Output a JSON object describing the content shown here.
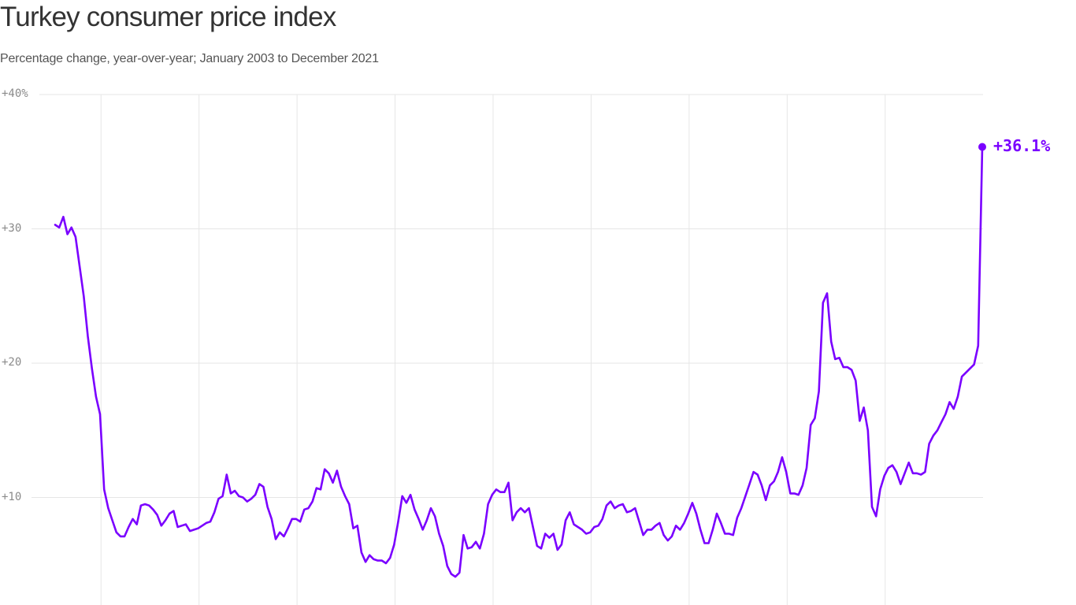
{
  "header": {
    "title": "Turkey consumer price index",
    "subtitle": "Percentage change, year-over-year; January 2003 to December 2021"
  },
  "colors": {
    "line": "#7a00ff",
    "grid": "#e6e6e6",
    "axis_text": "#8a8a8a",
    "title": "#333333"
  },
  "y_axis": {
    "ticks": [
      {
        "value": 40,
        "label": "+40%"
      },
      {
        "value": 30,
        "label": "+30"
      },
      {
        "value": 20,
        "label": "+20"
      },
      {
        "value": 10,
        "label": "+10"
      }
    ]
  },
  "annotation": {
    "end_label": "+36.1%"
  },
  "chart_data": {
    "type": "line",
    "title": "Turkey consumer price index",
    "subtitle": "Percentage change, year-over-year; January 2003 to December 2021",
    "xlabel": "",
    "ylabel": "",
    "x_start": "2003-01",
    "x_end": "2021-12",
    "frequency": "monthly",
    "ylim": [
      0,
      40
    ],
    "y_ticks": [
      "+10",
      "+20",
      "+30",
      "+40%"
    ],
    "grid": {
      "horizontal": true,
      "vertical": true,
      "vertical_every_years": 2,
      "vertical_first": "2004-01"
    },
    "legend": null,
    "annotations": [
      {
        "x": "2021-12",
        "y": 36.1,
        "text": "+36.1%"
      }
    ],
    "series": [
      {
        "name": "CPI y/y %",
        "values": [
          30.3,
          30.1,
          30.9,
          29.6,
          30.1,
          29.4,
          27.2,
          25.0,
          22.0,
          19.6,
          17.5,
          16.2,
          10.6,
          9.2,
          8.3,
          7.4,
          7.1,
          7.1,
          7.8,
          8.4,
          8.0,
          9.4,
          9.5,
          9.4,
          9.1,
          8.7,
          7.9,
          8.3,
          8.8,
          9.0,
          7.8,
          7.9,
          8.0,
          7.5,
          7.6,
          7.7,
          7.9,
          8.1,
          8.2,
          8.9,
          9.9,
          10.1,
          11.7,
          10.3,
          10.5,
          10.1,
          10.0,
          9.7,
          9.9,
          10.2,
          11.0,
          10.8,
          9.3,
          8.4,
          6.9,
          7.4,
          7.1,
          7.7,
          8.4,
          8.4,
          8.2,
          9.1,
          9.2,
          9.7,
          10.7,
          10.6,
          12.1,
          11.8,
          11.1,
          12.0,
          10.8,
          10.1,
          9.5,
          7.7,
          7.9,
          5.9,
          5.2,
          5.7,
          5.4,
          5.3,
          5.3,
          5.1,
          5.5,
          6.5,
          8.2,
          10.1,
          9.6,
          10.2,
          9.1,
          8.4,
          7.6,
          8.3,
          9.2,
          8.6,
          7.3,
          6.4,
          4.9,
          4.3,
          4.1,
          4.4,
          7.2,
          6.2,
          6.3,
          6.7,
          6.2,
          7.3,
          9.5,
          10.2,
          10.6,
          10.4,
          10.4,
          11.1,
          8.3,
          8.9,
          9.2,
          8.9,
          9.2,
          7.8,
          6.4,
          6.2,
          7.3,
          7.0,
          7.3,
          6.1,
          6.5,
          8.3,
          8.9,
          8.0,
          7.8,
          7.6,
          7.3,
          7.4,
          7.8,
          7.9,
          8.4,
          9.4,
          9.7,
          9.2,
          9.4,
          9.5,
          8.9,
          9.0,
          9.2,
          8.2,
          7.2,
          7.6,
          7.6,
          7.9,
          8.1,
          7.2,
          6.8,
          7.1,
          7.9,
          7.6,
          8.1,
          8.8,
          9.6,
          8.8,
          7.6,
          6.6,
          6.6,
          7.6,
          8.8,
          8.1,
          7.3,
          7.3,
          7.2,
          8.5,
          9.2,
          10.1,
          11.0,
          11.9,
          11.7,
          10.9,
          9.8,
          10.9,
          11.2,
          11.9,
          13.0,
          11.9,
          10.3,
          10.3,
          10.2,
          10.9,
          12.2,
          15.4,
          15.9,
          17.9,
          24.5,
          25.2,
          21.6,
          20.3,
          20.4,
          19.7,
          19.7,
          19.5,
          18.7,
          15.7,
          16.7,
          15.0,
          9.3,
          8.6,
          10.6,
          11.6,
          12.2,
          12.4,
          11.9,
          11.0,
          11.8,
          12.6,
          11.8,
          11.8,
          11.7,
          11.9,
          14.0,
          14.6,
          15.0,
          15.6,
          16.2,
          17.1,
          16.6,
          17.5,
          19.0,
          19.3,
          19.6,
          19.9,
          21.3,
          36.1
        ]
      }
    ]
  }
}
